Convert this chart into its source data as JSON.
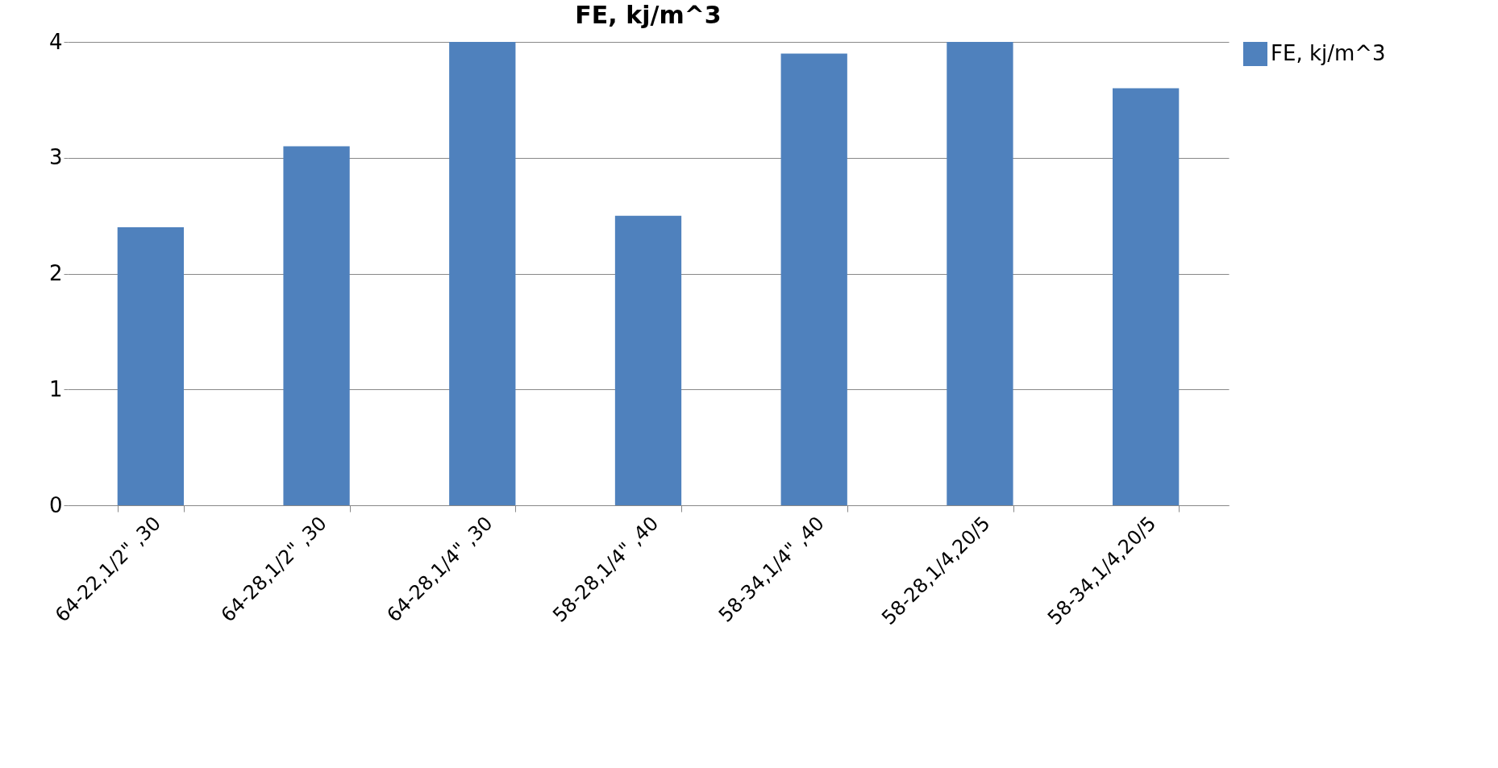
{
  "chart_data": {
    "type": "bar",
    "title": "FE, kj/m^3",
    "categories": [
      "64-22,1/2\" ,30",
      "64-28,1/2\" ,30",
      "64-28,1/4\" ,30",
      "58-28,1/4\" ,40",
      "58-34,1/4\" ,40",
      "58-28,1/4,20/5",
      "58-34,1/4,20/5"
    ],
    "series": [
      {
        "name": "FE, kj/m^3",
        "color": "#4f81bd",
        "values": [
          2.4,
          3.1,
          4.0,
          2.5,
          3.9,
          4.0,
          3.6
        ]
      }
    ],
    "ylim": [
      0,
      4
    ],
    "yticks": [
      0,
      1,
      2,
      3,
      4
    ],
    "grid": "y",
    "legend": "right"
  }
}
